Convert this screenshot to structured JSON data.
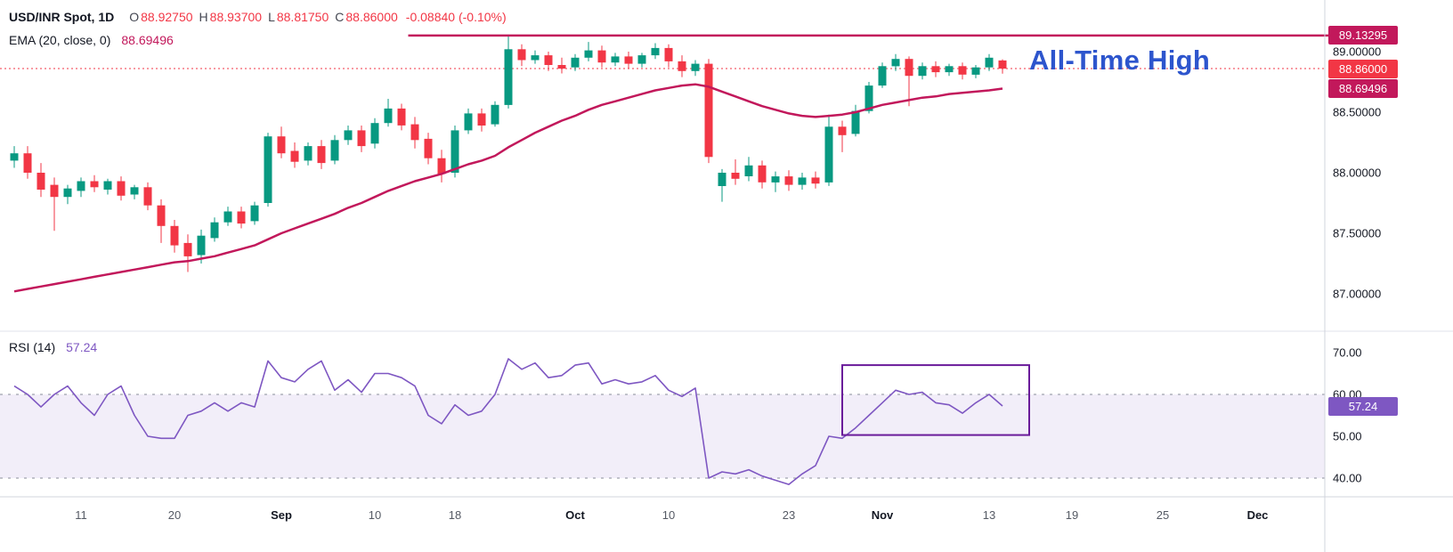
{
  "colors": {
    "up": "#089981",
    "down": "#f23645",
    "ema": "#c2185b",
    "rsi": "#7e57c2",
    "rsi_band_fill": "rgba(126,87,194,0.10)",
    "band_line": "#8a8e9a",
    "box": "#6a1b9a",
    "annotation": "#2d55cd",
    "axis_text": "#131722"
  },
  "header": {
    "title": "USD/INR Spot, 1D",
    "ohlc": [
      {
        "label": "O",
        "value": "88.92750"
      },
      {
        "label": "H",
        "value": "88.93700"
      },
      {
        "label": "L",
        "value": "88.81750"
      },
      {
        "label": "C",
        "value": "88.86000"
      }
    ],
    "change": "-0.08840 (-0.10%)",
    "ema_label": "EMA (20, close, 0)",
    "ema_value": "88.69496"
  },
  "rsi_header": {
    "label": "RSI (14)",
    "value": "57.24"
  },
  "annotation": {
    "text": "All-Time High"
  },
  "price_axis": {
    "ticks": [
      "89.00000",
      "88.50000",
      "88.00000",
      "87.50000",
      "87.00000"
    ],
    "tick_values": [
      89.0,
      88.5,
      88.0,
      87.5,
      87.0
    ],
    "badges": [
      {
        "text": "89.13295",
        "value": 89.13295,
        "type": "ath"
      },
      {
        "text": "88.86000",
        "value": 88.86,
        "type": "last"
      },
      {
        "text": "88.69496",
        "value": 88.69496,
        "type": "ema"
      }
    ]
  },
  "rsi_axis": {
    "ticks": [
      "70.00",
      "60.00",
      "50.00",
      "40.00"
    ],
    "tick_values": [
      70,
      60,
      50,
      40
    ],
    "badge": {
      "text": "57.24",
      "value": 57.24
    }
  },
  "time_axis": {
    "labels": [
      {
        "text": "11",
        "index": 5,
        "month": false
      },
      {
        "text": "20",
        "index": 12,
        "month": false
      },
      {
        "text": "Sep",
        "index": 20,
        "month": true
      },
      {
        "text": "10",
        "index": 27,
        "month": false
      },
      {
        "text": "18",
        "index": 33,
        "month": false
      },
      {
        "text": "Oct",
        "index": 42,
        "month": true
      },
      {
        "text": "10",
        "index": 49,
        "month": false
      },
      {
        "text": "23",
        "index": 58,
        "month": false
      },
      {
        "text": "Nov",
        "index": 65,
        "month": true
      },
      {
        "text": "13",
        "index": 73,
        "month": false
      },
      {
        "text": "19",
        "index": 79.2,
        "month": false
      },
      {
        "text": "25",
        "index": 86,
        "month": false
      },
      {
        "text": "Dec",
        "index": 93.1,
        "month": true
      }
    ]
  },
  "chart_data": [
    {
      "type": "candlestick",
      "title": "USD/INR Spot, 1D",
      "ylim": [
        86.691,
        89.4265
      ],
      "last_price_line": {
        "value": 88.86
      },
      "ath_line": {
        "value": 89.13295,
        "start_index": 29.5
      },
      "candles": [
        [
          88.1,
          88.22,
          88.04,
          88.16
        ],
        [
          88.16,
          88.22,
          87.95,
          88.0
        ],
        [
          88.0,
          88.08,
          87.8,
          87.86
        ],
        [
          87.9,
          87.96,
          87.52,
          87.8
        ],
        [
          87.8,
          87.9,
          87.74,
          87.87
        ],
        [
          87.85,
          87.96,
          87.8,
          87.93
        ],
        [
          87.93,
          87.98,
          87.84,
          87.88
        ],
        [
          87.86,
          87.95,
          87.82,
          87.93
        ],
        [
          87.93,
          87.97,
          87.77,
          87.81
        ],
        [
          87.82,
          87.9,
          87.78,
          87.88
        ],
        [
          87.88,
          87.92,
          87.69,
          87.73
        ],
        [
          87.73,
          87.78,
          87.42,
          87.56
        ],
        [
          87.56,
          87.61,
          87.34,
          87.4
        ],
        [
          87.42,
          87.49,
          87.18,
          87.31
        ],
        [
          87.32,
          87.53,
          87.25,
          87.48
        ],
        [
          87.46,
          87.63,
          87.43,
          87.59
        ],
        [
          87.59,
          87.72,
          87.56,
          87.68
        ],
        [
          87.68,
          87.72,
          87.54,
          87.58
        ],
        [
          87.6,
          87.76,
          87.57,
          87.73
        ],
        [
          87.75,
          88.33,
          87.72,
          88.3
        ],
        [
          88.3,
          88.38,
          88.12,
          88.16
        ],
        [
          88.18,
          88.25,
          88.04,
          88.09
        ],
        [
          88.1,
          88.25,
          88.06,
          88.22
        ],
        [
          88.22,
          88.27,
          88.03,
          88.08
        ],
        [
          88.1,
          88.31,
          88.07,
          88.27
        ],
        [
          88.27,
          88.39,
          88.23,
          88.35
        ],
        [
          88.35,
          88.39,
          88.17,
          88.22
        ],
        [
          88.24,
          88.45,
          88.2,
          88.41
        ],
        [
          88.41,
          88.61,
          88.38,
          88.53
        ],
        [
          88.53,
          88.57,
          88.35,
          88.39
        ],
        [
          88.4,
          88.46,
          88.2,
          88.27
        ],
        [
          88.28,
          88.33,
          88.07,
          88.12
        ],
        [
          88.12,
          88.19,
          87.92,
          87.99
        ],
        [
          88.0,
          88.39,
          87.96,
          88.35
        ],
        [
          88.35,
          88.53,
          88.32,
          88.49
        ],
        [
          88.49,
          88.53,
          88.34,
          88.39
        ],
        [
          88.4,
          88.59,
          88.38,
          88.56
        ],
        [
          88.56,
          89.135,
          88.53,
          89.02
        ],
        [
          89.02,
          89.06,
          88.88,
          88.93
        ],
        [
          88.93,
          89.01,
          88.9,
          88.97
        ],
        [
          88.97,
          89.0,
          88.84,
          88.89
        ],
        [
          88.89,
          88.95,
          88.82,
          88.86
        ],
        [
          88.87,
          88.98,
          88.84,
          88.95
        ],
        [
          88.95,
          89.08,
          88.92,
          89.01
        ],
        [
          89.01,
          89.05,
          88.87,
          88.91
        ],
        [
          88.91,
          88.99,
          88.88,
          88.96
        ],
        [
          88.96,
          89.0,
          88.86,
          88.9
        ],
        [
          88.9,
          88.99,
          88.87,
          88.97
        ],
        [
          88.97,
          89.07,
          88.94,
          89.03
        ],
        [
          89.03,
          89.06,
          88.87,
          88.92
        ],
        [
          88.92,
          88.97,
          88.79,
          88.84
        ],
        [
          88.84,
          88.93,
          88.8,
          88.9
        ],
        [
          88.9,
          88.94,
          88.08,
          88.13
        ],
        [
          87.89,
          88.03,
          87.76,
          88.0
        ],
        [
          88.0,
          88.11,
          87.9,
          87.95
        ],
        [
          87.97,
          88.13,
          87.93,
          88.06
        ],
        [
          88.06,
          88.1,
          87.87,
          87.92
        ],
        [
          87.92,
          88.01,
          87.84,
          87.97
        ],
        [
          87.97,
          88.02,
          87.85,
          87.9
        ],
        [
          87.9,
          88.0,
          87.86,
          87.96
        ],
        [
          87.96,
          88.01,
          87.87,
          87.91
        ],
        [
          87.92,
          88.48,
          87.89,
          88.38
        ],
        [
          88.38,
          88.43,
          88.17,
          88.31
        ],
        [
          88.32,
          88.56,
          88.3,
          88.51
        ],
        [
          88.51,
          88.75,
          88.49,
          88.72
        ],
        [
          88.72,
          88.91,
          88.7,
          88.88
        ],
        [
          88.88,
          88.98,
          88.84,
          88.94
        ],
        [
          88.94,
          88.96,
          88.55,
          88.8
        ],
        [
          88.8,
          88.91,
          88.77,
          88.88
        ],
        [
          88.88,
          88.92,
          88.79,
          88.83
        ],
        [
          88.83,
          88.9,
          88.8,
          88.88
        ],
        [
          88.88,
          88.91,
          88.77,
          88.81
        ],
        [
          88.81,
          88.89,
          88.78,
          88.87
        ],
        [
          88.87,
          88.98,
          88.84,
          88.95
        ],
        [
          88.9275,
          88.937,
          88.8175,
          88.86
        ]
      ],
      "ema_period": 20,
      "ema": [
        87.02,
        87.04,
        87.06,
        87.08,
        87.1,
        87.12,
        87.14,
        87.16,
        87.18,
        87.2,
        87.22,
        87.24,
        87.26,
        87.27,
        87.29,
        87.31,
        87.34,
        87.37,
        87.4,
        87.45,
        87.5,
        87.54,
        87.58,
        87.62,
        87.66,
        87.71,
        87.75,
        87.8,
        87.85,
        87.89,
        87.93,
        87.96,
        87.99,
        88.03,
        88.07,
        88.1,
        88.14,
        88.21,
        88.27,
        88.33,
        88.38,
        88.43,
        88.47,
        88.52,
        88.56,
        88.59,
        88.62,
        88.65,
        88.68,
        88.7,
        88.72,
        88.73,
        88.71,
        88.67,
        88.63,
        88.59,
        88.55,
        88.52,
        88.49,
        88.47,
        88.46,
        88.47,
        88.48,
        88.5,
        88.53,
        88.56,
        88.58,
        88.6,
        88.62,
        88.63,
        88.65,
        88.66,
        88.67,
        88.68,
        88.695
      ]
    },
    {
      "type": "line",
      "title": "RSI (14)",
      "ylim": [
        35.532,
        75.106
      ],
      "band": [
        40,
        60
      ],
      "values": [
        62,
        60,
        57,
        60,
        62,
        58,
        55,
        60,
        62,
        55,
        50,
        49.5,
        49.5,
        55,
        56,
        58,
        56,
        58,
        57,
        68,
        64,
        63,
        66,
        68,
        61,
        63.5,
        60.5,
        65,
        65,
        64,
        62,
        55,
        53,
        57.5,
        55,
        56,
        60,
        68.5,
        66,
        67.5,
        64,
        64.5,
        67,
        67.5,
        62.5,
        63.5,
        62.5,
        63,
        64.5,
        61,
        59.5,
        61.5,
        40,
        41.5,
        41,
        42,
        40.5,
        39.5,
        38.5,
        41,
        43,
        50,
        49.5,
        52,
        55,
        58,
        61,
        60,
        60.5,
        58,
        57.5,
        55.5,
        58,
        60,
        57.24
      ],
      "box": {
        "start_index": 62,
        "end_index": 76,
        "top": 67,
        "bottom": 50.3
      }
    }
  ]
}
